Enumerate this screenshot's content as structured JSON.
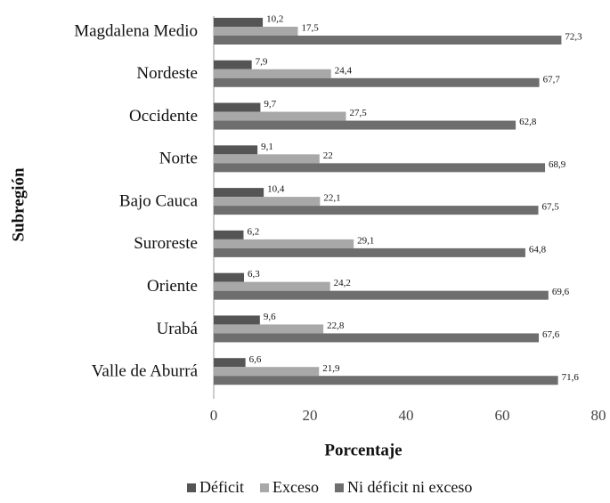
{
  "chart_data": {
    "type": "barh",
    "x_label": "Porcentaje",
    "y_label": "Subregión",
    "categories": [
      "Magdalena Medio",
      "Nordeste",
      "Occidente",
      "Norte",
      "Bajo Cauca",
      "Suroreste",
      "Oriente",
      "Urabá",
      "Valle de Aburrá"
    ],
    "series": [
      {
        "name": "Déficit",
        "color": "#555555",
        "values": [
          10.2,
          7.9,
          9.7,
          9.1,
          10.4,
          6.2,
          6.3,
          9.6,
          6.6
        ],
        "value_labels": [
          "10,2",
          "7,9",
          "9,7",
          "9,1",
          "10,4",
          "6,2",
          "6,3",
          "9,6",
          "6,6"
        ]
      },
      {
        "name": "Exceso",
        "color": "#a8a8a8",
        "values": [
          17.5,
          24.4,
          27.5,
          22,
          22.1,
          29.1,
          24.2,
          22.8,
          21.9
        ],
        "value_labels": [
          "17,5",
          "24,4",
          "27,5",
          "22",
          "22,1",
          "29,1",
          "24,2",
          "22,8",
          "21,9"
        ]
      },
      {
        "name": "Ni déficit ni exceso",
        "color": "#6e6e6e",
        "values": [
          72.3,
          67.7,
          62.8,
          68.9,
          67.5,
          64.8,
          69.6,
          67.6,
          71.6
        ],
        "value_labels": [
          "72,3",
          "67,7",
          "62,8",
          "68,9",
          "67,5",
          "64,8",
          "69,6",
          "67,6",
          "71,6"
        ]
      }
    ],
    "xlim": [
      0,
      80
    ],
    "xticks": [
      0,
      20,
      40,
      60,
      80
    ],
    "legend": "bottom"
  }
}
